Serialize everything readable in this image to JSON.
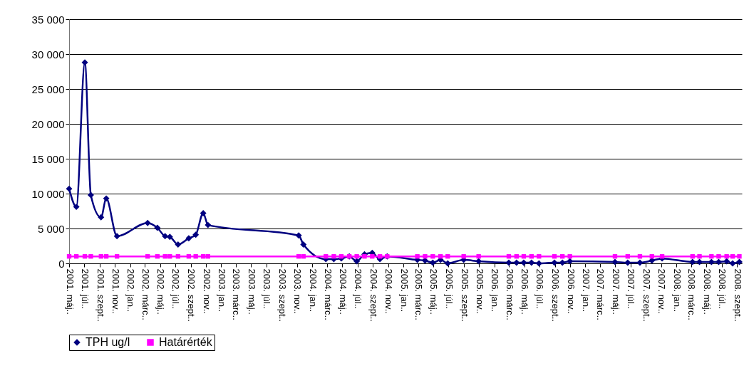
{
  "chart_data": {
    "type": "line",
    "x": [
      "2001-05-01",
      "2001-05-30",
      "2001-07-03",
      "2001-07-27",
      "2001-09-06",
      "2001-09-27",
      "2001-11-09",
      "2002-03-12",
      "2002-04-20",
      "2002-05-21",
      "2002-06-09",
      "2002-07-12",
      "2002-08-24",
      "2002-09-21",
      "2002-10-21",
      "2002-11-09",
      "2003-11-08",
      "2003-11-27",
      "2004-02-25",
      "2004-03-28",
      "2004-04-27",
      "2004-05-29",
      "2004-06-28",
      "2004-07-29",
      "2004-08-29",
      "2004-09-29",
      "2004-10-28",
      "2005-02-26",
      "2005-03-29",
      "2005-04-29",
      "2005-05-30",
      "2005-06-28",
      "2005-08-31",
      "2005-10-30",
      "2006-02-28",
      "2006-03-31",
      "2006-04-29",
      "2006-05-30",
      "2006-06-29",
      "2006-08-30",
      "2006-10-01",
      "2006-10-31",
      "2007-04-30",
      "2007-06-20",
      "2007-08-08",
      "2007-09-25",
      "2007-11-05",
      "2008-03-06",
      "2008-04-03",
      "2008-05-21",
      "2008-06-19",
      "2008-07-21",
      "2008-08-14",
      "2008-09-10"
    ],
    "series": [
      {
        "name": "TPH ug/l",
        "color": "#000080",
        "marker": "diamond",
        "values": [
          10700,
          8100,
          28800,
          9800,
          6600,
          9300,
          3900,
          5800,
          5100,
          3900,
          3800,
          2700,
          3600,
          4100,
          7200,
          5500,
          4000,
          2700,
          600,
          600,
          700,
          1000,
          300,
          1300,
          1500,
          600,
          1000,
          500,
          400,
          100,
          500,
          0,
          500,
          300,
          100,
          100,
          100,
          100,
          0,
          100,
          100,
          300,
          200,
          100,
          100,
          400,
          700,
          200,
          200,
          200,
          200,
          300,
          0,
          200
        ]
      },
      {
        "name": "Határérték",
        "color": "#ff00ff",
        "marker": "square",
        "values": [
          1000,
          1000,
          1000,
          1000,
          1000,
          1000,
          1000,
          1000,
          1000,
          1000,
          1000,
          1000,
          1000,
          1000,
          1000,
          1000,
          1000,
          1000,
          1000,
          1000,
          1000,
          1000,
          1000,
          1000,
          1000,
          1000,
          1000,
          1000,
          1000,
          1000,
          1000,
          1000,
          1000,
          1000,
          1000,
          1000,
          1000,
          1000,
          1000,
          1000,
          1000,
          1000,
          1000,
          1000,
          1000,
          1000,
          1000,
          1000,
          1000,
          1000,
          1000,
          1000,
          1000,
          1000
        ]
      }
    ],
    "xlim": [
      "2001-05-01",
      "2008-09-20"
    ],
    "xticks": [
      {
        "value": "2001-05-01",
        "label": "2001. máj.."
      },
      {
        "value": "2001-07-01",
        "label": "2001. júl.."
      },
      {
        "value": "2001-09-01",
        "label": "2001. szept.."
      },
      {
        "value": "2001-11-01",
        "label": "2001. nov.."
      },
      {
        "value": "2002-01-01",
        "label": "2002. jan.."
      },
      {
        "value": "2002-03-01",
        "label": "2002. márc.."
      },
      {
        "value": "2002-05-01",
        "label": "2002. máj.."
      },
      {
        "value": "2002-07-01",
        "label": "2002. júl.."
      },
      {
        "value": "2002-09-01",
        "label": "2002. szept.."
      },
      {
        "value": "2002-11-01",
        "label": "2002. nov.."
      },
      {
        "value": "2003-01-01",
        "label": "2003. jan.."
      },
      {
        "value": "2003-03-01",
        "label": "2003. márc.."
      },
      {
        "value": "2003-05-01",
        "label": "2003. máj.."
      },
      {
        "value": "2003-07-01",
        "label": "2003. júl.."
      },
      {
        "value": "2003-09-01",
        "label": "2003. szept.."
      },
      {
        "value": "2003-11-01",
        "label": "2003. nov.."
      },
      {
        "value": "2004-01-01",
        "label": "2004. jan.."
      },
      {
        "value": "2004-03-01",
        "label": "2004. márc.."
      },
      {
        "value": "2004-05-01",
        "label": "2004. máj.."
      },
      {
        "value": "2004-07-01",
        "label": "2004. júl.."
      },
      {
        "value": "2004-09-01",
        "label": "2004. szept.."
      },
      {
        "value": "2004-11-01",
        "label": "2004. nov.."
      },
      {
        "value": "2005-01-01",
        "label": "2005. jan.."
      },
      {
        "value": "2005-03-01",
        "label": "2005. márc.."
      },
      {
        "value": "2005-05-01",
        "label": "2005. máj.."
      },
      {
        "value": "2005-07-01",
        "label": "2005. júl.."
      },
      {
        "value": "2005-09-01",
        "label": "2005. szept.."
      },
      {
        "value": "2005-11-01",
        "label": "2005. nov.."
      },
      {
        "value": "2006-01-01",
        "label": "2006. jan.."
      },
      {
        "value": "2006-03-01",
        "label": "2006. márc.."
      },
      {
        "value": "2006-05-01",
        "label": "2006. máj.."
      },
      {
        "value": "2006-07-01",
        "label": "2006. júl.."
      },
      {
        "value": "2006-09-01",
        "label": "2006. szept.."
      },
      {
        "value": "2006-11-01",
        "label": "2006. nov.."
      },
      {
        "value": "2007-01-01",
        "label": "2007. jan.."
      },
      {
        "value": "2007-03-01",
        "label": "2007. márc.."
      },
      {
        "value": "2007-05-01",
        "label": "2007. máj.."
      },
      {
        "value": "2007-07-01",
        "label": "2007. júl.."
      },
      {
        "value": "2007-09-01",
        "label": "2007. szept.."
      },
      {
        "value": "2007-11-01",
        "label": "2007. nov.."
      },
      {
        "value": "2008-01-01",
        "label": "2008. jan.."
      },
      {
        "value": "2008-03-01",
        "label": "2008. márc.."
      },
      {
        "value": "2008-05-01",
        "label": "2008. máj.."
      },
      {
        "value": "2008-07-01",
        "label": "2008. júl.."
      },
      {
        "value": "2008-09-01",
        "label": "2008. szept.."
      }
    ],
    "ylim": [
      0,
      35000
    ],
    "yticks": [
      0,
      {
        "value": 5000,
        "label": "5 000"
      },
      {
        "value": 10000,
        "label": "10 000"
      },
      {
        "value": 15000,
        "label": "15 000"
      },
      {
        "value": 20000,
        "label": "20 000"
      },
      {
        "value": 25000,
        "label": "25 000"
      },
      {
        "value": 30000,
        "label": "30 000"
      },
      {
        "value": 35000,
        "label": "35 000"
      }
    ],
    "grid": "y",
    "legend": "bottom",
    "line_style": "solid"
  }
}
